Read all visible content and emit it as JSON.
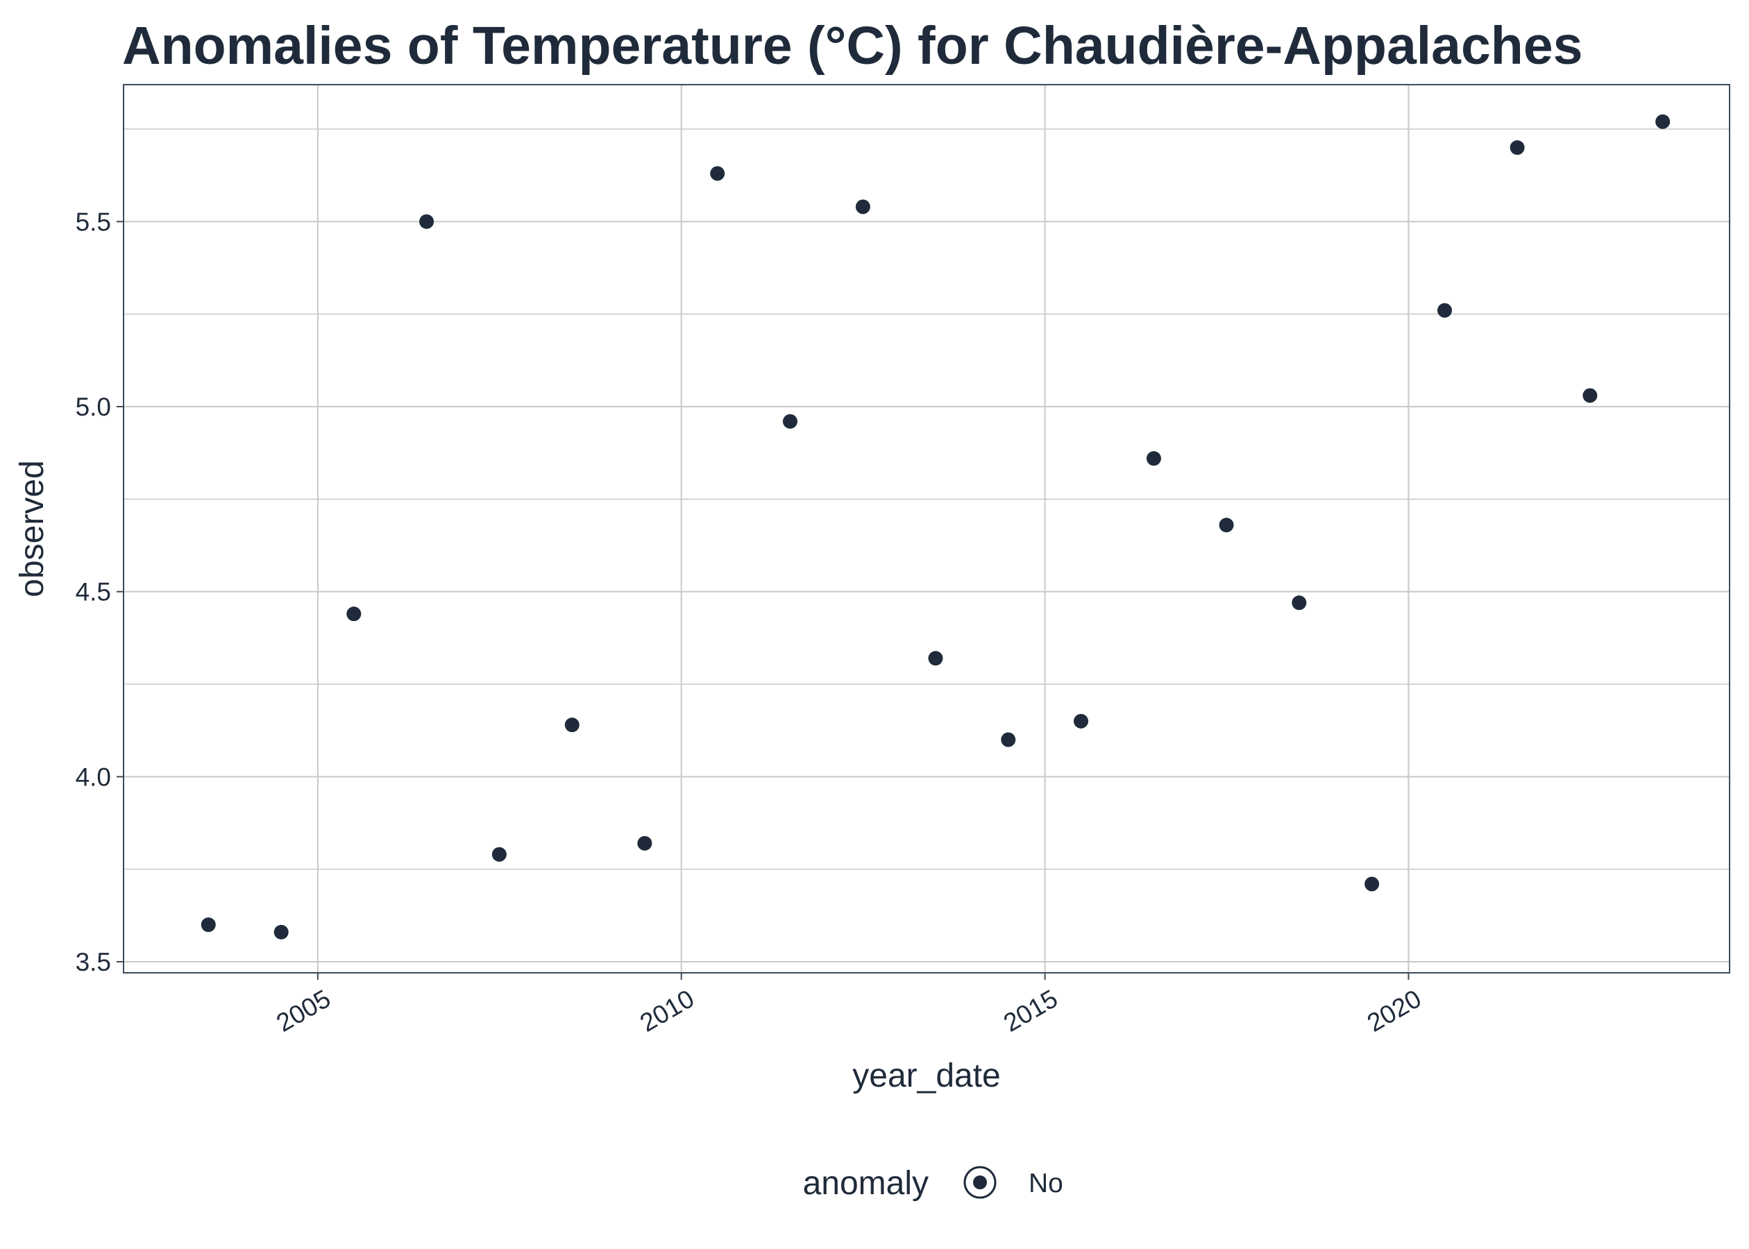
{
  "chart_data": {
    "type": "scatter",
    "title": "Anomalies of Temperature (°C) for Chaudière-Appalaches",
    "xlabel": "year_date",
    "ylabel": "observed",
    "x_ticks": [
      "2005",
      "2010",
      "2015",
      "2020"
    ],
    "y_ticks": [
      "3.5",
      "4.0",
      "4.5",
      "5.0",
      "5.5"
    ],
    "xlim": [
      "2002-05-01",
      "2024-06-01"
    ],
    "ylim": [
      3.47,
      5.87
    ],
    "grid": true,
    "point_color": "#1f2b3a",
    "legend": {
      "title": "anomaly",
      "entries": [
        {
          "label": "No",
          "color": "#1f2b3a"
        }
      ],
      "position": "bottom"
    },
    "series": [
      {
        "name": "No",
        "points": [
          {
            "x": "2003-07-01",
            "y": 3.6
          },
          {
            "x": "2004-07-01",
            "y": 3.58
          },
          {
            "x": "2005-07-01",
            "y": 4.44
          },
          {
            "x": "2006-07-01",
            "y": 5.5
          },
          {
            "x": "2007-07-01",
            "y": 3.79
          },
          {
            "x": "2008-07-01",
            "y": 4.14
          },
          {
            "x": "2009-07-01",
            "y": 3.82
          },
          {
            "x": "2010-07-01",
            "y": 5.63
          },
          {
            "x": "2011-07-01",
            "y": 4.96
          },
          {
            "x": "2012-07-01",
            "y": 5.54
          },
          {
            "x": "2013-07-01",
            "y": 4.32
          },
          {
            "x": "2014-07-01",
            "y": 4.1
          },
          {
            "x": "2015-07-01",
            "y": 4.15
          },
          {
            "x": "2016-07-01",
            "y": 4.86
          },
          {
            "x": "2017-07-01",
            "y": 4.68
          },
          {
            "x": "2018-07-01",
            "y": 4.47
          },
          {
            "x": "2019-07-01",
            "y": 3.71
          },
          {
            "x": "2020-07-01",
            "y": 5.26
          },
          {
            "x": "2021-07-01",
            "y": 5.7
          },
          {
            "x": "2022-07-01",
            "y": 5.03
          },
          {
            "x": "2023-07-01",
            "y": 5.77
          }
        ]
      }
    ]
  }
}
